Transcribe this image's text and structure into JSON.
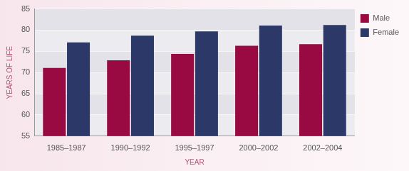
{
  "chart_data": {
    "type": "bar",
    "x_label": "YEAR",
    "y_label": "YEARS OF LIFE",
    "categories": [
      "1985–1987",
      "1990–1992",
      "1995–1997",
      "2000–2002",
      "2002–2004"
    ],
    "series": [
      {
        "name": "Male",
        "color": "#990a42",
        "values": [
          71.1,
          72.9,
          74.4,
          76.3,
          76.7
        ]
      },
      {
        "name": "Female",
        "color": "#2c3868",
        "values": [
          77.1,
          78.7,
          79.7,
          81.1,
          81.2
        ]
      }
    ],
    "ylim": [
      55,
      85
    ],
    "yticks": [
      55,
      60,
      65,
      70,
      75,
      80,
      85
    ],
    "grid": true,
    "legend": "right"
  }
}
